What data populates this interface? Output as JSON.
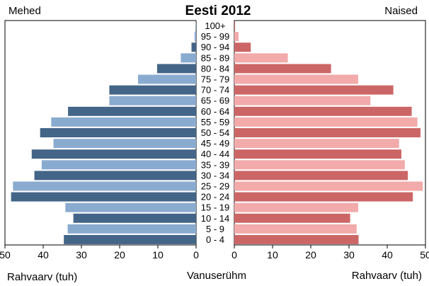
{
  "chart_data": {
    "type": "bar",
    "title": "Eesti 2012",
    "left_label": "Mehed",
    "right_label": "Naised",
    "xlabel_left": "Rahvaarv (tuh)",
    "xlabel_center": "Vanuserühm",
    "xlabel_right": "Rahvaarv (tuh)",
    "xlim": [
      0,
      50
    ],
    "xticks": [
      0,
      10,
      20,
      30,
      40,
      50
    ],
    "categories": [
      "100+",
      "95 - 99",
      "90 - 94",
      "85 - 89",
      "80 - 84",
      "75 - 79",
      "70 - 74",
      "65 - 69",
      "60 - 64",
      "55 - 59",
      "50 - 54",
      "45 - 49",
      "40 - 44",
      "35 - 39",
      "30 - 34",
      "25 - 29",
      "20 - 24",
      "15 - 19",
      "10 - 14",
      "5 - 9",
      "0 - 4"
    ],
    "series": [
      {
        "name": "Mehed",
        "colors": [
          "#8aabd0",
          "#436588"
        ],
        "values": [
          0.1,
          0.4,
          1.2,
          4.0,
          10.2,
          15.2,
          22.7,
          22.7,
          33.5,
          37.9,
          40.8,
          37.3,
          43.0,
          40.4,
          42.3,
          47.9,
          48.4,
          34.2,
          32.1,
          33.6,
          34.6
        ]
      },
      {
        "name": "Naised",
        "colors": [
          "#f2aaaa",
          "#cc6666"
        ],
        "values": [
          0.2,
          1.1,
          4.3,
          14.0,
          25.3,
          32.4,
          41.6,
          35.6,
          46.4,
          47.9,
          48.7,
          43.1,
          43.7,
          44.6,
          45.4,
          49.3,
          46.7,
          32.4,
          30.3,
          32.0,
          32.5
        ]
      }
    ],
    "grid": false,
    "legend": "none"
  }
}
